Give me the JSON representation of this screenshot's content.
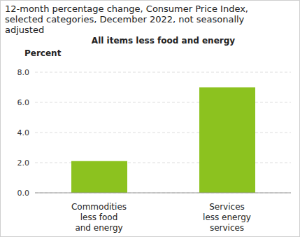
{
  "chart_data": {
    "type": "bar",
    "title": "12-month percentage change, Consumer Price Index, selected categories, December 2022, not seasonally adjusted",
    "subtitle": "All items less food and energy",
    "y_label": "Percent",
    "categories": [
      "Commodities less food and energy",
      "Services less energy services"
    ],
    "values": [
      2.1,
      7.0
    ],
    "color": "#8cc21f",
    "ylim": [
      0,
      8
    ],
    "yticks": [
      {
        "value": 0,
        "label": "0.0"
      },
      {
        "value": 2,
        "label": "2.0"
      },
      {
        "value": 4,
        "label": "4.0"
      },
      {
        "value": 6,
        "label": "6.0"
      },
      {
        "value": 8,
        "label": "8.0"
      }
    ],
    "grid": true
  }
}
